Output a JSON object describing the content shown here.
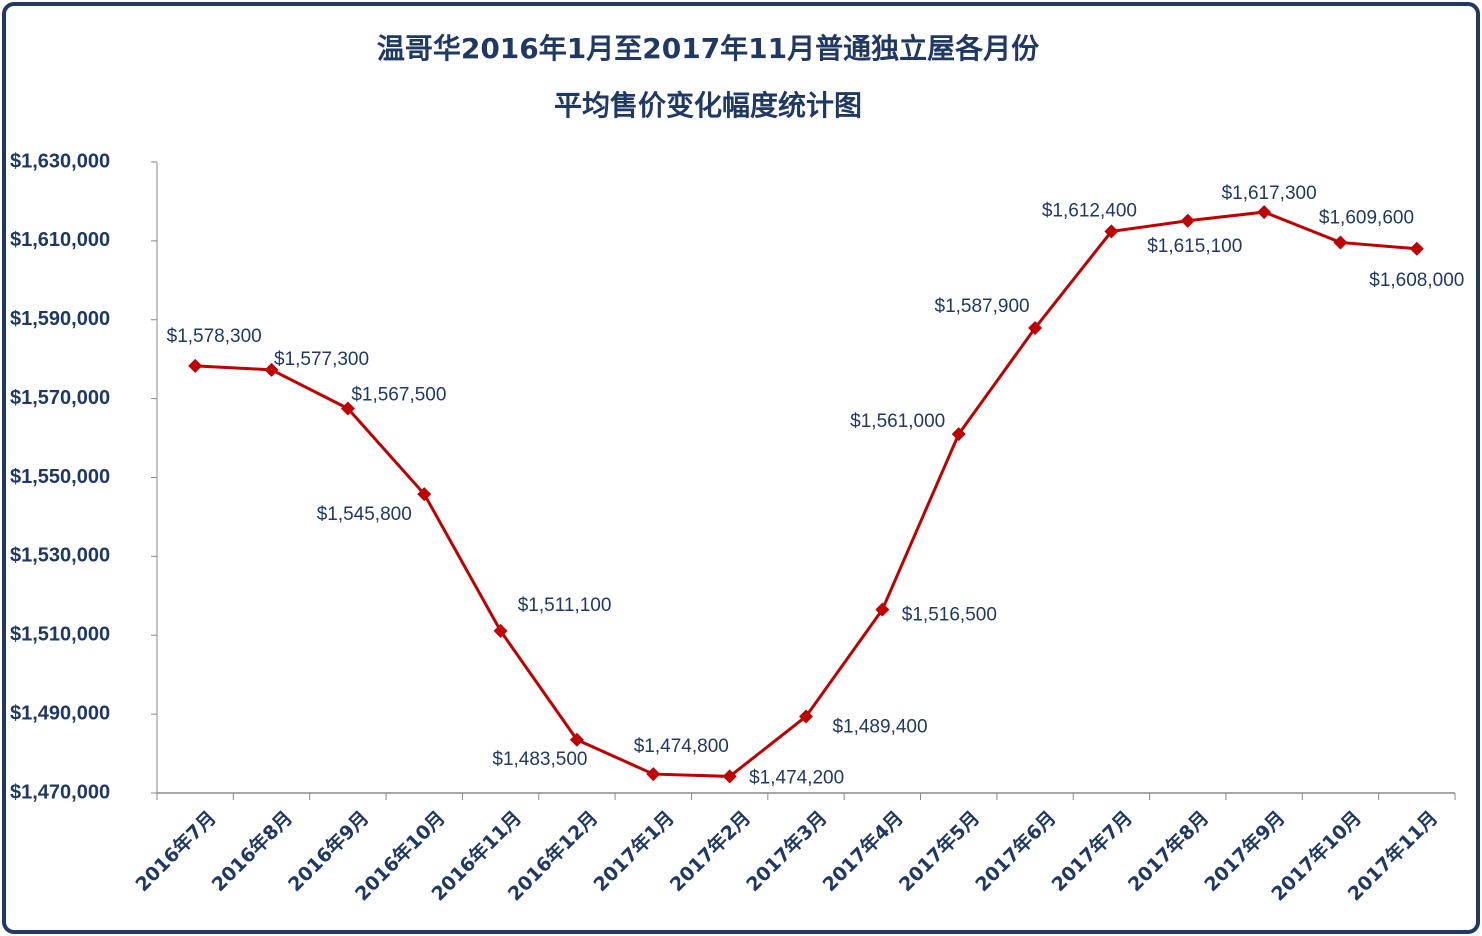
{
  "chart_data": {
    "type": "line",
    "title": [
      "温哥华2016年1月至2017年11月普通独立屋各月份",
      "平均售价变化幅度统计图"
    ],
    "categories": [
      "2016年7月",
      "2016年8月",
      "2016年9月",
      "2016年10月",
      "2016年11月",
      "2016年12月",
      "2017年1月",
      "2017年2月",
      "2017年3月",
      "2017年4月",
      "2017年5月",
      "2017年6月",
      "2017年7月",
      "2017年8月",
      "2017年9月",
      "2017年10月",
      "2017年11月"
    ],
    "series": [
      {
        "color": "#c00000",
        "values": [
          1578300,
          1577300,
          1567500,
          1545800,
          1511100,
          1483500,
          1474800,
          1474200,
          1489400,
          1516500,
          1561000,
          1587900,
          1612400,
          1615100,
          1617300,
          1609600,
          1608000
        ],
        "value_labels": [
          "$1,578,300",
          "$1,577,300",
          "$1,567,500",
          "$1,545,800",
          "$1,511,100",
          "$1,483,500",
          "$1,474,800",
          "$1,474,200",
          "$1,489,400",
          "$1,516,500",
          "$1,561,000",
          "$1,587,900",
          "$1,612,400",
          "$1,615,100",
          "$1,617,300",
          "$1,609,600",
          "$1,608,000"
        ]
      }
    ],
    "ylim": [
      1470000,
      1630000
    ],
    "yticks": [
      {
        "value": 1470000,
        "label": "$1,470,000"
      },
      {
        "value": 1490000,
        "label": "$1,490,000"
      },
      {
        "value": 1510000,
        "label": "$1,510,000"
      },
      {
        "value": 1530000,
        "label": "$1,530,000"
      },
      {
        "value": 1550000,
        "label": "$1,550,000"
      },
      {
        "value": 1570000,
        "label": "$1,570,000"
      },
      {
        "value": 1590000,
        "label": "$1,590,000"
      },
      {
        "value": 1610000,
        "label": "$1,610,000"
      },
      {
        "value": 1630000,
        "label": "$1,630,000"
      }
    ]
  }
}
